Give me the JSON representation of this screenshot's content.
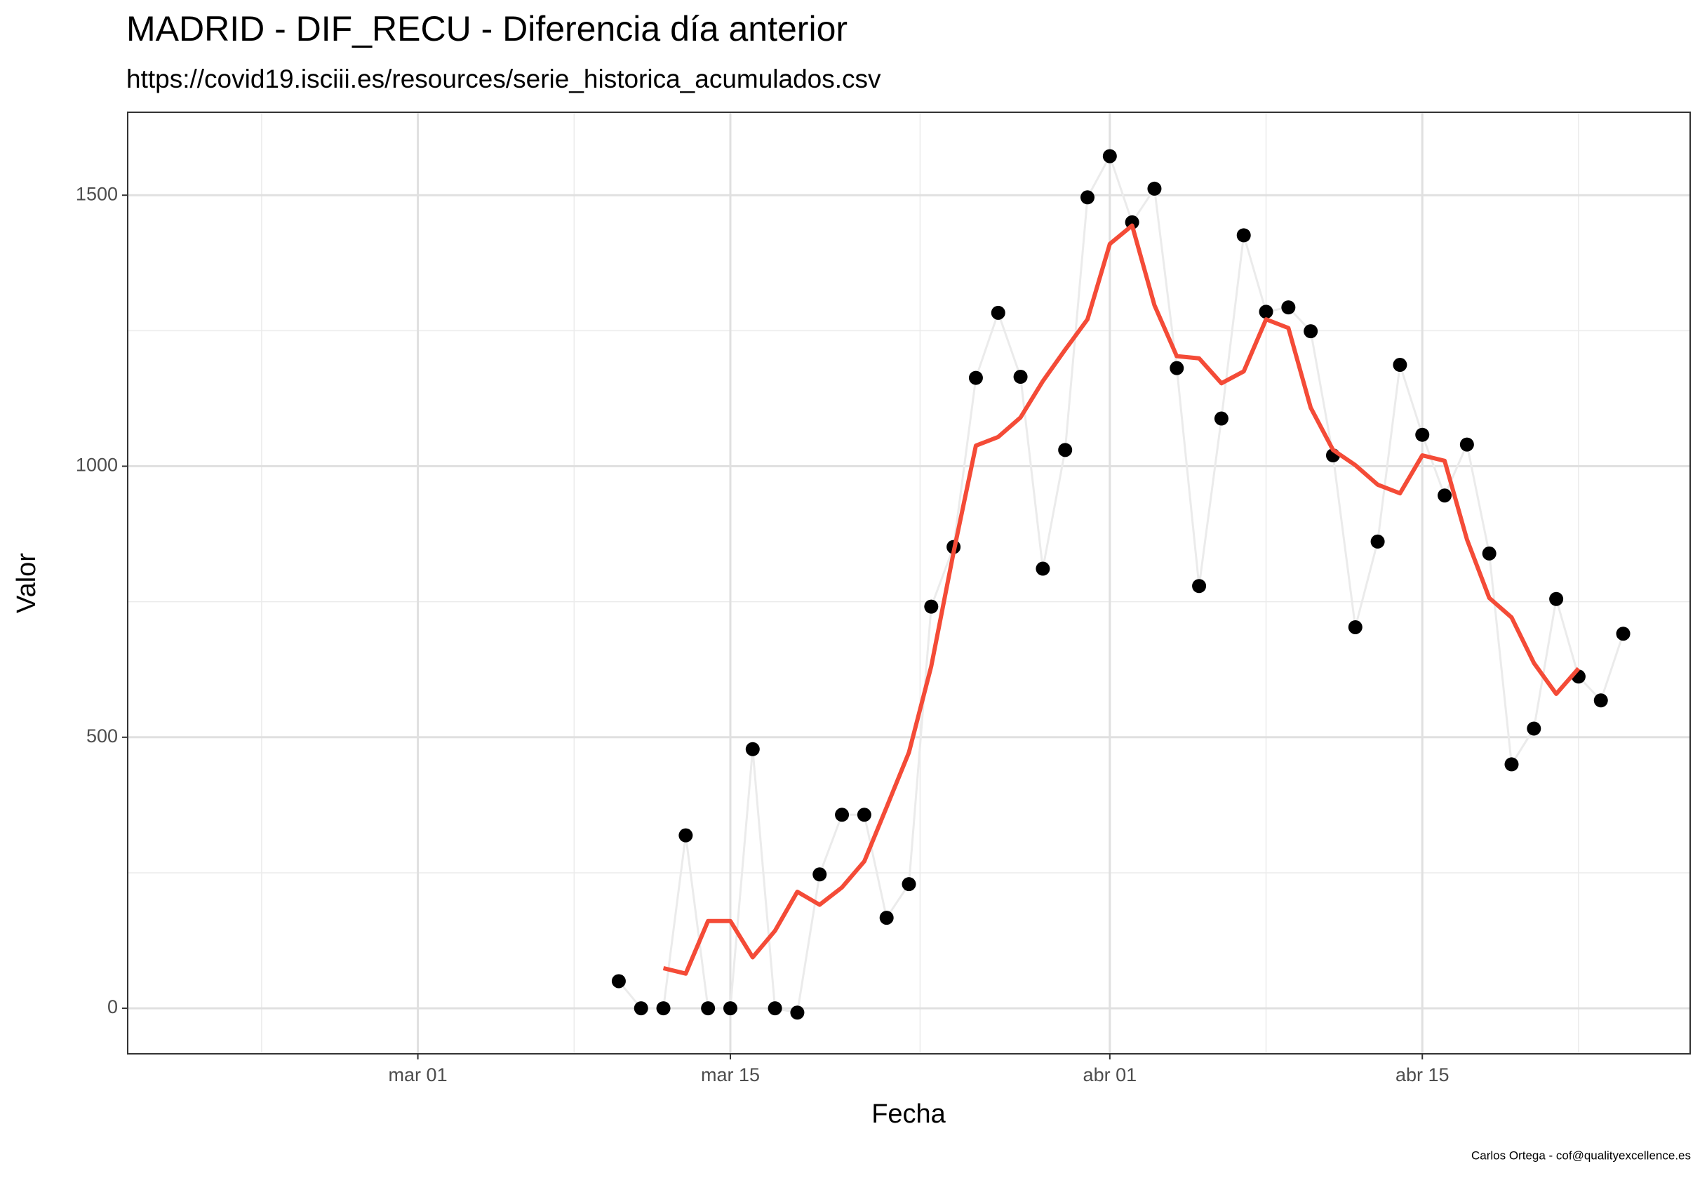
{
  "chart_data": {
    "type": "line",
    "title": "MADRID - DIF_RECU - Diferencia día anterior",
    "subtitle": "https://covid19.isciii.es/resources/serie_historica_acumulados.csv",
    "x_label": "Fecha",
    "y_label": "Valor",
    "caption": "Carlos Ortega - cof@qualityexcellence.es",
    "x": [
      "mar 10",
      "mar 11",
      "mar 12",
      "mar 13",
      "mar 14",
      "mar 15",
      "mar 16",
      "mar 17",
      "mar 18",
      "mar 19",
      "mar 20",
      "mar 21",
      "mar 22",
      "mar 23",
      "mar 24",
      "mar 25",
      "mar 26",
      "mar 27",
      "mar 28",
      "mar 29",
      "mar 30",
      "mar 31",
      "abr 01",
      "abr 02",
      "abr 03",
      "abr 04",
      "abr 05",
      "abr 06",
      "abr 07",
      "abr 08",
      "abr 09",
      "abr 10",
      "abr 11",
      "abr 12",
      "abr 13",
      "abr 14",
      "abr 15",
      "abr 16",
      "abr 17",
      "abr 18",
      "abr 19",
      "abr 20",
      "abr 21",
      "abr 22",
      "abr 23",
      "abr 24"
    ],
    "series": [
      {
        "color": "#000000",
        "line_color": "#ebebeb",
        "points": true,
        "values": [
          50,
          0,
          0,
          319,
          0,
          0,
          478,
          0,
          -8,
          247,
          357,
          357,
          167,
          229,
          741,
          851,
          1163,
          1283,
          1165,
          811,
          1030,
          1496,
          1572,
          1450,
          1512,
          1181,
          779,
          1088,
          1426,
          1285,
          1293,
          1249,
          1020,
          703,
          861,
          1187,
          1058,
          946,
          1040,
          839,
          450,
          516,
          755,
          612,
          568,
          691
        ]
      },
      {
        "color": "#f44b37",
        "points": false,
        "values": [
          null,
          null,
          74,
          64,
          161,
          161,
          94,
          143,
          215,
          191,
          223,
          271,
          371,
          472,
          631,
          841,
          1038,
          1054,
          1090,
          1157,
          1215,
          1271,
          1410,
          1444,
          1297,
          1203,
          1199,
          1153,
          1175,
          1271,
          1255,
          1108,
          1030,
          1002,
          966,
          950,
          1020,
          1010,
          865,
          757,
          721,
          637,
          580,
          627,
          null,
          null
        ]
      }
    ],
    "xlim": [
      "feb 17",
      "abr 27"
    ],
    "xticks": [
      "mar 01",
      "mar 15",
      "abr 01",
      "abr 15"
    ],
    "ylim": [
      -84,
      1653
    ],
    "yticks": [
      0,
      500,
      1000,
      1500
    ],
    "grid": true
  }
}
